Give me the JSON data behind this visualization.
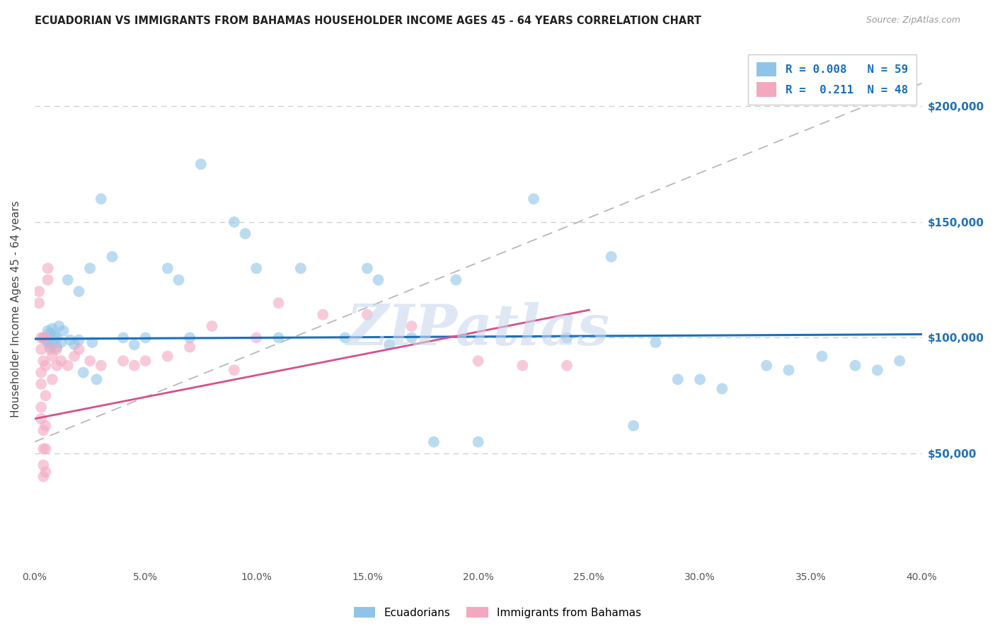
{
  "title": "ECUADORIAN VS IMMIGRANTS FROM BAHAMAS HOUSEHOLDER INCOME AGES 45 - 64 YEARS CORRELATION CHART",
  "source": "Source: ZipAtlas.com",
  "ylabel": "Householder Income Ages 45 - 64 years",
  "xlim": [
    0.0,
    0.4
  ],
  "ylim": [
    0,
    225000
  ],
  "yticks": [
    50000,
    100000,
    150000,
    200000
  ],
  "ytick_labels": [
    "$50,000",
    "$100,000",
    "$150,000",
    "$200,000"
  ],
  "xticks": [
    0.0,
    0.05,
    0.1,
    0.15,
    0.2,
    0.25,
    0.3,
    0.35,
    0.4
  ],
  "xtick_labels": [
    "0.0%",
    "5.0%",
    "10.0%",
    "15.0%",
    "20.0%",
    "25.0%",
    "30.0%",
    "35.0%",
    "40.0%"
  ],
  "legend_r1": "R = 0.008",
  "legend_n1": "N = 59",
  "legend_r2": "R =  0.211",
  "legend_n2": "N = 48",
  "blue_color": "#8fc4e8",
  "pink_color": "#f4a8c0",
  "blue_line_color": "#1a6fbd",
  "pink_line_color": "#d94f8a",
  "gray_dash_color": "#b8b8b8",
  "watermark": "ZIPatlas",
  "blue_scatter_x": [
    0.004,
    0.005,
    0.006,
    0.006,
    0.007,
    0.007,
    0.008,
    0.008,
    0.009,
    0.01,
    0.01,
    0.011,
    0.012,
    0.013,
    0.015,
    0.016,
    0.018,
    0.02,
    0.02,
    0.022,
    0.025,
    0.026,
    0.028,
    0.03,
    0.035,
    0.04,
    0.045,
    0.05,
    0.06,
    0.065,
    0.07,
    0.075,
    0.09,
    0.095,
    0.1,
    0.11,
    0.12,
    0.14,
    0.15,
    0.155,
    0.16,
    0.17,
    0.18,
    0.19,
    0.2,
    0.225,
    0.24,
    0.26,
    0.27,
    0.28,
    0.29,
    0.3,
    0.31,
    0.33,
    0.34,
    0.355,
    0.37,
    0.38,
    0.39
  ],
  "blue_scatter_y": [
    100000,
    99000,
    103000,
    98000,
    102000,
    96000,
    104000,
    97000,
    101000,
    100000,
    96000,
    105000,
    98000,
    103000,
    125000,
    99000,
    97000,
    120000,
    99000,
    85000,
    130000,
    98000,
    82000,
    160000,
    135000,
    100000,
    97000,
    100000,
    130000,
    125000,
    100000,
    175000,
    150000,
    145000,
    130000,
    100000,
    130000,
    100000,
    130000,
    125000,
    97000,
    100000,
    55000,
    125000,
    55000,
    160000,
    100000,
    135000,
    62000,
    98000,
    82000,
    82000,
    78000,
    88000,
    86000,
    92000,
    88000,
    86000,
    90000
  ],
  "pink_scatter_x": [
    0.002,
    0.002,
    0.003,
    0.003,
    0.003,
    0.003,
    0.003,
    0.003,
    0.004,
    0.004,
    0.004,
    0.004,
    0.004,
    0.004,
    0.005,
    0.005,
    0.005,
    0.005,
    0.005,
    0.005,
    0.006,
    0.006,
    0.007,
    0.008,
    0.008,
    0.01,
    0.01,
    0.012,
    0.015,
    0.018,
    0.02,
    0.025,
    0.03,
    0.04,
    0.045,
    0.05,
    0.06,
    0.07,
    0.08,
    0.09,
    0.1,
    0.11,
    0.13,
    0.15,
    0.17,
    0.2,
    0.22,
    0.24
  ],
  "pink_scatter_y": [
    120000,
    115000,
    100000,
    95000,
    85000,
    80000,
    70000,
    65000,
    100000,
    90000,
    60000,
    52000,
    45000,
    40000,
    100000,
    88000,
    75000,
    62000,
    52000,
    42000,
    130000,
    125000,
    95000,
    92000,
    82000,
    95000,
    88000,
    90000,
    88000,
    92000,
    95000,
    90000,
    88000,
    90000,
    88000,
    90000,
    92000,
    96000,
    105000,
    86000,
    100000,
    115000,
    110000,
    110000,
    105000,
    90000,
    88000,
    88000
  ],
  "blue_trend_x": [
    0.0,
    0.4
  ],
  "blue_trend_y": [
    99500,
    101500
  ],
  "pink_trend_x": [
    0.0,
    0.25
  ],
  "pink_trend_y": [
    65000,
    112000
  ],
  "gray_trend_x": [
    0.0,
    0.4
  ],
  "gray_trend_y": [
    55000,
    210000
  ]
}
